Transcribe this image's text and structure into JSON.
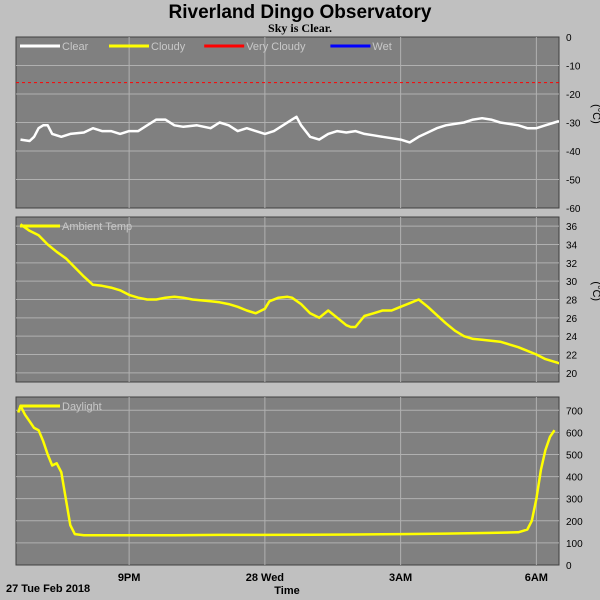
{
  "header": {
    "title": "Riverland Dingo Observatory",
    "subtitle": "Sky is Clear."
  },
  "footer": {
    "date_label": "27 Tue Feb 2018",
    "xlabel": "Time"
  },
  "colors": {
    "frame": "#c0c0c0",
    "plot_bg": "#808080",
    "grid": "#b0b0b0",
    "clear": "#ffffff",
    "cloudy": "#ffff00",
    "very_cloudy": "#ff0000",
    "wet": "#0000ff"
  },
  "chart_data": [
    {
      "type": "line",
      "ylabel": "(°C)",
      "ylim": [
        -60,
        0
      ],
      "yticks": [
        "0",
        "-10",
        "-20",
        "-30",
        "-40",
        "-50",
        "-60"
      ],
      "xlim": [
        18.5,
        30.5
      ],
      "xticks": [
        {
          "x": 21,
          "label": "9PM"
        },
        {
          "x": 24,
          "label": "28 Wed"
        },
        {
          "x": 27,
          "label": "3AM"
        },
        {
          "x": 30,
          "label": "6AM"
        }
      ],
      "grid": true,
      "legend_position": "top-left",
      "legend": [
        {
          "label": "Clear",
          "color_key": "clear"
        },
        {
          "label": "Cloudy",
          "color_key": "cloudy"
        },
        {
          "label": "Very Cloudy",
          "color_key": "very_cloudy"
        },
        {
          "label": "Wet",
          "color_key": "wet"
        }
      ],
      "threshold": {
        "y": -16,
        "color_key": "very_cloudy"
      },
      "series": [
        {
          "name": "Clear",
          "color_key": "clear",
          "points": [
            [
              18.6,
              -36
            ],
            [
              18.8,
              -36.5
            ],
            [
              18.9,
              -35
            ],
            [
              19.0,
              -32
            ],
            [
              19.1,
              -31
            ],
            [
              19.2,
              -31
            ],
            [
              19.3,
              -34
            ],
            [
              19.5,
              -35
            ],
            [
              19.7,
              -34
            ],
            [
              20.0,
              -33.5
            ],
            [
              20.2,
              -32
            ],
            [
              20.4,
              -33
            ],
            [
              20.6,
              -33
            ],
            [
              20.8,
              -34
            ],
            [
              21.0,
              -33
            ],
            [
              21.2,
              -33
            ],
            [
              21.4,
              -31
            ],
            [
              21.6,
              -29
            ],
            [
              21.8,
              -29
            ],
            [
              22.0,
              -31
            ],
            [
              22.2,
              -31.5
            ],
            [
              22.5,
              -31
            ],
            [
              22.8,
              -32
            ],
            [
              23.0,
              -30
            ],
            [
              23.2,
              -31
            ],
            [
              23.4,
              -33
            ],
            [
              23.6,
              -32
            ],
            [
              23.8,
              -33
            ],
            [
              24.0,
              -34
            ],
            [
              24.2,
              -33
            ],
            [
              24.4,
              -31
            ],
            [
              24.6,
              -29
            ],
            [
              24.7,
              -28
            ],
            [
              24.8,
              -31
            ],
            [
              25.0,
              -35
            ],
            [
              25.2,
              -36
            ],
            [
              25.4,
              -34
            ],
            [
              25.6,
              -33
            ],
            [
              25.8,
              -33.5
            ],
            [
              26.0,
              -33
            ],
            [
              26.2,
              -34
            ],
            [
              26.4,
              -34.5
            ],
            [
              26.6,
              -35
            ],
            [
              26.8,
              -35.5
            ],
            [
              27.0,
              -36
            ],
            [
              27.2,
              -37
            ],
            [
              27.4,
              -35
            ],
            [
              27.6,
              -33.5
            ],
            [
              27.8,
              -32
            ],
            [
              28.0,
              -31
            ],
            [
              28.2,
              -30.5
            ],
            [
              28.4,
              -30
            ],
            [
              28.6,
              -29
            ],
            [
              28.8,
              -28.5
            ],
            [
              29.0,
              -29
            ],
            [
              29.2,
              -30
            ],
            [
              29.4,
              -30.5
            ],
            [
              29.6,
              -31
            ],
            [
              29.8,
              -32
            ],
            [
              30.0,
              -32
            ],
            [
              30.2,
              -31
            ],
            [
              30.4,
              -30
            ],
            [
              30.5,
              -29.5
            ]
          ]
        }
      ]
    },
    {
      "type": "line",
      "ylabel": "(°C)",
      "ylim": [
        19,
        37
      ],
      "yticks": [
        "36",
        "34",
        "32",
        "30",
        "28",
        "26",
        "24",
        "22",
        "20"
      ],
      "xlim": [
        18.5,
        30.5
      ],
      "xticks": [
        {
          "x": 21,
          "label": "9PM"
        },
        {
          "x": 24,
          "label": "28 Wed"
        },
        {
          "x": 27,
          "label": "3AM"
        },
        {
          "x": 30,
          "label": "6AM"
        }
      ],
      "grid": true,
      "legend_position": "top-left",
      "legend": [
        {
          "label": "Ambient Temp",
          "color_key": "cloudy"
        }
      ],
      "series": [
        {
          "name": "Ambient Temp",
          "color_key": "cloudy",
          "points": [
            [
              18.6,
              36.2
            ],
            [
              18.8,
              35.5
            ],
            [
              19.0,
              35
            ],
            [
              19.2,
              34
            ],
            [
              19.4,
              33.2
            ],
            [
              19.6,
              32.5
            ],
            [
              19.8,
              31.5
            ],
            [
              20.0,
              30.5
            ],
            [
              20.2,
              29.6
            ],
            [
              20.4,
              29.5
            ],
            [
              20.6,
              29.3
            ],
            [
              20.8,
              29
            ],
            [
              21.0,
              28.5
            ],
            [
              21.2,
              28.2
            ],
            [
              21.4,
              28
            ],
            [
              21.6,
              28
            ],
            [
              21.8,
              28.2
            ],
            [
              22.0,
              28.3
            ],
            [
              22.2,
              28.2
            ],
            [
              22.4,
              28
            ],
            [
              22.6,
              27.9
            ],
            [
              22.8,
              27.8
            ],
            [
              23.0,
              27.7
            ],
            [
              23.2,
              27.5
            ],
            [
              23.4,
              27.2
            ],
            [
              23.6,
              26.8
            ],
            [
              23.8,
              26.5
            ],
            [
              24.0,
              27
            ],
            [
              24.1,
              27.8
            ],
            [
              24.3,
              28.2
            ],
            [
              24.5,
              28.3
            ],
            [
              24.6,
              28.2
            ],
            [
              24.8,
              27.5
            ],
            [
              25.0,
              26.5
            ],
            [
              25.2,
              26
            ],
            [
              25.4,
              26.8
            ],
            [
              25.6,
              26
            ],
            [
              25.8,
              25.2
            ],
            [
              25.9,
              25
            ],
            [
              26.0,
              25
            ],
            [
              26.2,
              26.2
            ],
            [
              26.4,
              26.5
            ],
            [
              26.6,
              26.8
            ],
            [
              26.8,
              26.8
            ],
            [
              27.0,
              27.2
            ],
            [
              27.2,
              27.6
            ],
            [
              27.4,
              28
            ],
            [
              27.6,
              27.2
            ],
            [
              27.8,
              26.3
            ],
            [
              28.0,
              25.4
            ],
            [
              28.2,
              24.6
            ],
            [
              28.4,
              24
            ],
            [
              28.6,
              23.7
            ],
            [
              28.8,
              23.6
            ],
            [
              29.0,
              23.5
            ],
            [
              29.2,
              23.4
            ],
            [
              29.4,
              23.1
            ],
            [
              29.6,
              22.8
            ],
            [
              29.8,
              22.4
            ],
            [
              30.0,
              22
            ],
            [
              30.2,
              21.5
            ],
            [
              30.4,
              21.2
            ],
            [
              30.6,
              20.9
            ],
            [
              30.8,
              20.6
            ],
            [
              31.0,
              20.3
            ]
          ]
        }
      ]
    },
    {
      "type": "line",
      "ylabel": "",
      "ylim": [
        0,
        760
      ],
      "yticks": [
        "700",
        "600",
        "500",
        "400",
        "300",
        "200",
        "100",
        "0"
      ],
      "xlim": [
        18.5,
        30.5
      ],
      "xticks": [
        {
          "x": 21,
          "label": "9PM"
        },
        {
          "x": 24,
          "label": "28 Wed"
        },
        {
          "x": 27,
          "label": "3AM"
        },
        {
          "x": 30,
          "label": "6AM"
        }
      ],
      "grid": true,
      "legend_position": "top-left",
      "legend": [
        {
          "label": "Daylight",
          "color_key": "cloudy"
        }
      ],
      "series": [
        {
          "name": "Daylight",
          "color_key": "cloudy",
          "points": [
            [
              18.55,
              690
            ],
            [
              18.6,
              720
            ],
            [
              18.7,
              680
            ],
            [
              18.8,
              650
            ],
            [
              18.9,
              620
            ],
            [
              19.0,
              610
            ],
            [
              19.1,
              560
            ],
            [
              19.2,
              500
            ],
            [
              19.3,
              450
            ],
            [
              19.4,
              460
            ],
            [
              19.5,
              420
            ],
            [
              19.6,
              300
            ],
            [
              19.7,
              180
            ],
            [
              19.8,
              140
            ],
            [
              20.0,
              135
            ],
            [
              21.0,
              135
            ],
            [
              22.0,
              135
            ],
            [
              23.0,
              136
            ],
            [
              24.0,
              136
            ],
            [
              25.0,
              137
            ],
            [
              26.0,
              138
            ],
            [
              27.0,
              140
            ],
            [
              28.0,
              142
            ],
            [
              29.0,
              145
            ],
            [
              29.6,
              148
            ],
            [
              29.8,
              160
            ],
            [
              29.9,
              200
            ],
            [
              30.0,
              300
            ],
            [
              30.1,
              430
            ],
            [
              30.2,
              520
            ],
            [
              30.3,
              580
            ],
            [
              30.4,
              610
            ]
          ]
        }
      ]
    }
  ]
}
